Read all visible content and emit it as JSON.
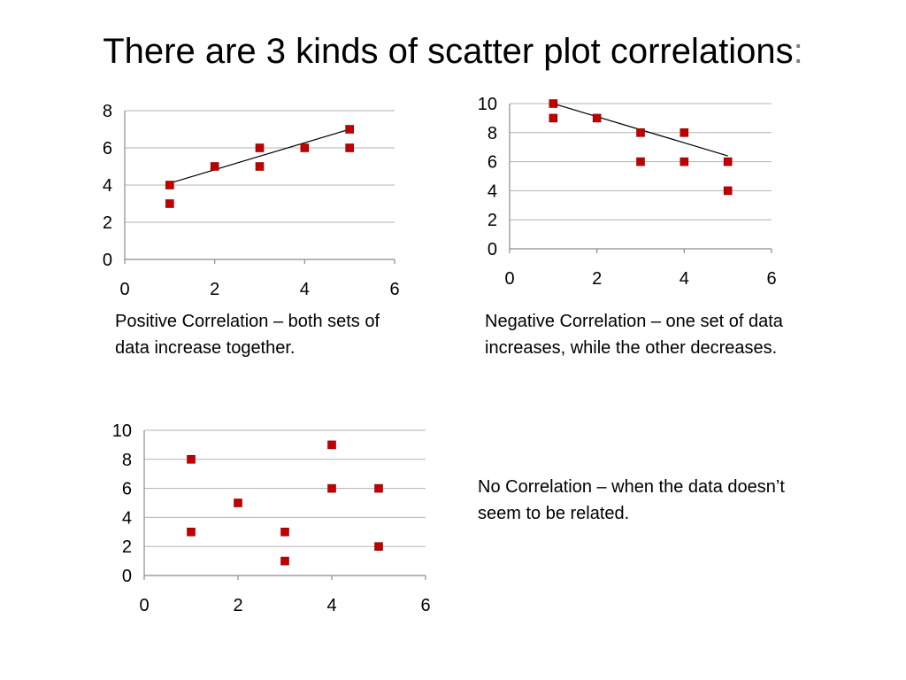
{
  "title": {
    "text": "There are 3 kinds of scatter plot correlations",
    "colon": ":"
  },
  "accent_color": "#C00000",
  "captions": {
    "positive": "Positive Correlation – both sets of data increase together.",
    "negative": "Negative Correlation – one set of data increases, while the other decreases.",
    "none": "No Correlation –  when the data doesn’t seem to be related."
  },
  "chart_data": [
    {
      "type": "scatter",
      "name": "positive",
      "xlim": [
        0,
        6
      ],
      "ylim": [
        0,
        8
      ],
      "xticks": [
        0,
        2,
        4,
        6
      ],
      "yticks": [
        0,
        2,
        4,
        6,
        8
      ],
      "points": [
        [
          1,
          4
        ],
        [
          1,
          3
        ],
        [
          2,
          5
        ],
        [
          3,
          6
        ],
        [
          3,
          5
        ],
        [
          4,
          6
        ],
        [
          5,
          7
        ],
        [
          5,
          6
        ]
      ],
      "trendline": [
        [
          1,
          4.1
        ],
        [
          5,
          7
        ]
      ],
      "grid": true
    },
    {
      "type": "scatter",
      "name": "negative",
      "xlim": [
        0,
        6
      ],
      "ylim": [
        0,
        10
      ],
      "xticks": [
        0,
        2,
        4,
        6
      ],
      "yticks": [
        0,
        2,
        4,
        6,
        8,
        10
      ],
      "points": [
        [
          1,
          10
        ],
        [
          1,
          9
        ],
        [
          2,
          9
        ],
        [
          3,
          8
        ],
        [
          3,
          6
        ],
        [
          4,
          8
        ],
        [
          4,
          6
        ],
        [
          5,
          6
        ],
        [
          5,
          4
        ]
      ],
      "trendline": [
        [
          1,
          10
        ],
        [
          5,
          6.4
        ]
      ],
      "grid": true
    },
    {
      "type": "scatter",
      "name": "none",
      "xlim": [
        0,
        6
      ],
      "ylim": [
        0,
        10
      ],
      "xticks": [
        0,
        2,
        4,
        6
      ],
      "yticks": [
        0,
        2,
        4,
        6,
        8,
        10
      ],
      "points": [
        [
          1,
          8
        ],
        [
          1,
          3
        ],
        [
          2,
          5
        ],
        [
          3,
          3
        ],
        [
          3,
          1
        ],
        [
          4,
          9
        ],
        [
          4,
          6
        ],
        [
          5,
          6
        ],
        [
          5,
          2
        ]
      ],
      "grid": true
    }
  ]
}
